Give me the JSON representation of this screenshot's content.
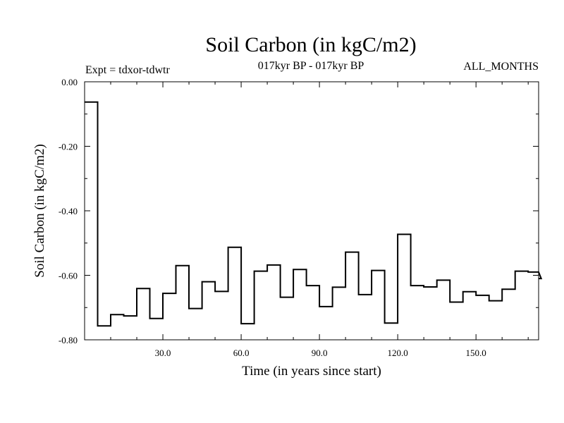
{
  "chart_data": {
    "type": "line",
    "title": "Soil Carbon (in kgC/m2)",
    "subtitle": "017kyr BP - 017kyr BP",
    "left_label": "Expt = tdxor-tdwtr",
    "right_label": "ALL_MONTHS",
    "xlabel": "Time (in years since start)",
    "ylabel": "Soil Carbon (in kgC/m2)",
    "xlim": [
      0,
      174
    ],
    "ylim": [
      -0.8,
      0.0
    ],
    "xticks": [
      30,
      60,
      90,
      120,
      150
    ],
    "xtick_labels": [
      "30.0",
      "60.0",
      "90.0",
      "120.0",
      "150.0"
    ],
    "yticks": [
      0.0,
      -0.2,
      -0.4,
      -0.6,
      -0.8
    ],
    "ytick_labels": [
      "0.00",
      "-0.20",
      "-0.40",
      "-0.60",
      "-0.80"
    ],
    "step_width": 5,
    "series": [
      {
        "name": "Soil Carbon",
        "style": "step",
        "values": [
          -0.063,
          -0.757,
          -0.722,
          -0.726,
          -0.641,
          -0.734,
          -0.656,
          -0.57,
          -0.703,
          -0.62,
          -0.65,
          -0.513,
          -0.75,
          -0.587,
          -0.568,
          -0.668,
          -0.582,
          -0.632,
          -0.697,
          -0.637,
          -0.528,
          -0.66,
          -0.585,
          -0.748,
          -0.473,
          -0.632,
          -0.636,
          -0.615,
          -0.683,
          -0.651,
          -0.662,
          -0.679,
          -0.643,
          -0.587,
          -0.59,
          -0.61
        ]
      }
    ]
  }
}
